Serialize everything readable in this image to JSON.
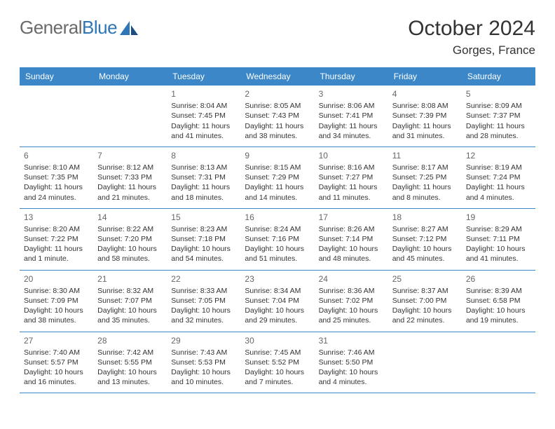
{
  "logo": {
    "text1": "General",
    "text2": "Blue"
  },
  "title": "October 2024",
  "location": "Gorges, France",
  "colors": {
    "header_bg": "#3b87c8",
    "header_text": "#ffffff",
    "divider": "#3b87c8",
    "daynum": "#666666",
    "body_text": "#333333",
    "logo_gray": "#6a6a6a",
    "logo_blue": "#2e76b6"
  },
  "weekdays": [
    "Sunday",
    "Monday",
    "Tuesday",
    "Wednesday",
    "Thursday",
    "Friday",
    "Saturday"
  ],
  "layout": {
    "first_weekday_index": 2,
    "days_in_month": 31
  },
  "days": {
    "1": {
      "sunrise": "8:04 AM",
      "sunset": "7:45 PM",
      "daylight": "11 hours and 41 minutes."
    },
    "2": {
      "sunrise": "8:05 AM",
      "sunset": "7:43 PM",
      "daylight": "11 hours and 38 minutes."
    },
    "3": {
      "sunrise": "8:06 AM",
      "sunset": "7:41 PM",
      "daylight": "11 hours and 34 minutes."
    },
    "4": {
      "sunrise": "8:08 AM",
      "sunset": "7:39 PM",
      "daylight": "11 hours and 31 minutes."
    },
    "5": {
      "sunrise": "8:09 AM",
      "sunset": "7:37 PM",
      "daylight": "11 hours and 28 minutes."
    },
    "6": {
      "sunrise": "8:10 AM",
      "sunset": "7:35 PM",
      "daylight": "11 hours and 24 minutes."
    },
    "7": {
      "sunrise": "8:12 AM",
      "sunset": "7:33 PM",
      "daylight": "11 hours and 21 minutes."
    },
    "8": {
      "sunrise": "8:13 AM",
      "sunset": "7:31 PM",
      "daylight": "11 hours and 18 minutes."
    },
    "9": {
      "sunrise": "8:15 AM",
      "sunset": "7:29 PM",
      "daylight": "11 hours and 14 minutes."
    },
    "10": {
      "sunrise": "8:16 AM",
      "sunset": "7:27 PM",
      "daylight": "11 hours and 11 minutes."
    },
    "11": {
      "sunrise": "8:17 AM",
      "sunset": "7:25 PM",
      "daylight": "11 hours and 8 minutes."
    },
    "12": {
      "sunrise": "8:19 AM",
      "sunset": "7:24 PM",
      "daylight": "11 hours and 4 minutes."
    },
    "13": {
      "sunrise": "8:20 AM",
      "sunset": "7:22 PM",
      "daylight": "11 hours and 1 minute."
    },
    "14": {
      "sunrise": "8:22 AM",
      "sunset": "7:20 PM",
      "daylight": "10 hours and 58 minutes."
    },
    "15": {
      "sunrise": "8:23 AM",
      "sunset": "7:18 PM",
      "daylight": "10 hours and 54 minutes."
    },
    "16": {
      "sunrise": "8:24 AM",
      "sunset": "7:16 PM",
      "daylight": "10 hours and 51 minutes."
    },
    "17": {
      "sunrise": "8:26 AM",
      "sunset": "7:14 PM",
      "daylight": "10 hours and 48 minutes."
    },
    "18": {
      "sunrise": "8:27 AM",
      "sunset": "7:12 PM",
      "daylight": "10 hours and 45 minutes."
    },
    "19": {
      "sunrise": "8:29 AM",
      "sunset": "7:11 PM",
      "daylight": "10 hours and 41 minutes."
    },
    "20": {
      "sunrise": "8:30 AM",
      "sunset": "7:09 PM",
      "daylight": "10 hours and 38 minutes."
    },
    "21": {
      "sunrise": "8:32 AM",
      "sunset": "7:07 PM",
      "daylight": "10 hours and 35 minutes."
    },
    "22": {
      "sunrise": "8:33 AM",
      "sunset": "7:05 PM",
      "daylight": "10 hours and 32 minutes."
    },
    "23": {
      "sunrise": "8:34 AM",
      "sunset": "7:04 PM",
      "daylight": "10 hours and 29 minutes."
    },
    "24": {
      "sunrise": "8:36 AM",
      "sunset": "7:02 PM",
      "daylight": "10 hours and 25 minutes."
    },
    "25": {
      "sunrise": "8:37 AM",
      "sunset": "7:00 PM",
      "daylight": "10 hours and 22 minutes."
    },
    "26": {
      "sunrise": "8:39 AM",
      "sunset": "6:58 PM",
      "daylight": "10 hours and 19 minutes."
    },
    "27": {
      "sunrise": "7:40 AM",
      "sunset": "5:57 PM",
      "daylight": "10 hours and 16 minutes."
    },
    "28": {
      "sunrise": "7:42 AM",
      "sunset": "5:55 PM",
      "daylight": "10 hours and 13 minutes."
    },
    "29": {
      "sunrise": "7:43 AM",
      "sunset": "5:53 PM",
      "daylight": "10 hours and 10 minutes."
    },
    "30": {
      "sunrise": "7:45 AM",
      "sunset": "5:52 PM",
      "daylight": "10 hours and 7 minutes."
    },
    "31": {
      "sunrise": "7:46 AM",
      "sunset": "5:50 PM",
      "daylight": "10 hours and 4 minutes."
    }
  },
  "labels": {
    "sunrise": "Sunrise: ",
    "sunset": "Sunset: ",
    "daylight": "Daylight: "
  }
}
